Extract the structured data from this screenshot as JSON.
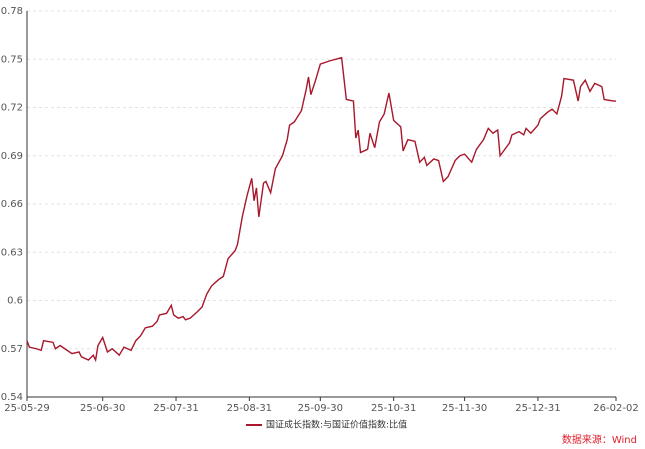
{
  "chart_data": {
    "type": "line",
    "legend_label": "国证成长指数:与国证价值指数:比值",
    "source": "数据来源：Wind",
    "x": [
      "25-05-29",
      "25-05-30",
      "25-06-02",
      "25-06-04",
      "25-06-05",
      "25-06-09",
      "25-06-10",
      "25-06-12",
      "25-06-15",
      "25-06-17",
      "25-06-20",
      "25-06-21",
      "25-06-24",
      "25-06-26",
      "25-06-27",
      "25-06-28",
      "25-06-30",
      "25-07-02",
      "25-07-04",
      "25-07-07",
      "25-07-09",
      "25-07-12",
      "25-07-14",
      "25-07-16",
      "25-07-18",
      "25-07-21",
      "25-07-23",
      "25-07-24",
      "25-07-27",
      "25-07-29",
      "25-07-30",
      "25-08-01",
      "25-08-03",
      "25-08-04",
      "25-08-06",
      "25-08-09",
      "25-08-11",
      "25-08-13",
      "25-08-15",
      "25-08-18",
      "25-08-20",
      "25-08-22",
      "25-08-25",
      "25-08-26",
      "25-08-28",
      "25-08-30",
      "25-09-01",
      "25-09-02",
      "25-09-03",
      "25-09-04",
      "25-09-06",
      "25-09-07",
      "25-09-09",
      "25-09-11",
      "25-09-14",
      "25-09-16",
      "25-09-17",
      "25-09-19",
      "25-09-22",
      "25-09-24",
      "25-09-25",
      "25-09-26",
      "25-09-28",
      "25-09-30",
      "25-10-04",
      "25-10-09",
      "25-10-11",
      "25-10-14",
      "25-10-15",
      "25-10-16",
      "25-10-17",
      "25-10-20",
      "25-10-21",
      "25-10-23",
      "25-10-25",
      "25-10-27",
      "25-10-29",
      "25-10-31",
      "25-11-03",
      "25-11-04",
      "25-11-06",
      "25-11-09",
      "25-11-11",
      "25-11-13",
      "25-11-14",
      "25-11-17",
      "25-11-19",
      "25-11-21",
      "25-11-23",
      "25-11-26",
      "25-11-28",
      "25-11-30",
      "25-12-03",
      "25-12-05",
      "25-12-08",
      "25-12-10",
      "25-12-12",
      "25-12-14",
      "25-12-15",
      "25-12-19",
      "25-12-20",
      "25-12-23",
      "25-12-25",
      "25-12-26",
      "25-12-28",
      "25-12-31",
      "26-01-01",
      "26-01-04",
      "26-01-06",
      "26-01-08",
      "26-01-10",
      "26-01-11",
      "26-01-15",
      "26-01-17",
      "26-01-18",
      "26-01-20",
      "26-01-22",
      "26-01-24",
      "26-01-27",
      "26-01-28",
      "26-02-01",
      "26-02-02"
    ],
    "series": [
      {
        "name": "国证成长指数:与国证价值指数:比值",
        "color": "#a8172a",
        "values": [
          0.575,
          0.571,
          0.57,
          0.569,
          0.575,
          0.574,
          0.57,
          0.572,
          0.569,
          0.567,
          0.568,
          0.565,
          0.563,
          0.566,
          0.563,
          0.572,
          0.577,
          0.568,
          0.57,
          0.566,
          0.571,
          0.569,
          0.575,
          0.578,
          0.583,
          0.584,
          0.587,
          0.591,
          0.592,
          0.597,
          0.591,
          0.589,
          0.59,
          0.588,
          0.589,
          0.593,
          0.596,
          0.604,
          0.609,
          0.613,
          0.615,
          0.626,
          0.631,
          0.635,
          0.652,
          0.665,
          0.676,
          0.662,
          0.67,
          0.652,
          0.673,
          0.674,
          0.667,
          0.682,
          0.69,
          0.7,
          0.709,
          0.711,
          0.718,
          0.731,
          0.739,
          0.728,
          0.737,
          0.747,
          0.749,
          0.751,
          0.725,
          0.724,
          0.701,
          0.706,
          0.692,
          0.694,
          0.704,
          0.695,
          0.711,
          0.716,
          0.729,
          0.712,
          0.708,
          0.693,
          0.7,
          0.699,
          0.686,
          0.689,
          0.684,
          0.688,
          0.687,
          0.674,
          0.677,
          0.687,
          0.69,
          0.691,
          0.686,
          0.694,
          0.7,
          0.707,
          0.704,
          0.706,
          0.69,
          0.698,
          0.703,
          0.705,
          0.703,
          0.707,
          0.704,
          0.709,
          0.713,
          0.717,
          0.719,
          0.716,
          0.727,
          0.738,
          0.737,
          0.724,
          0.733,
          0.737,
          0.73,
          0.735,
          0.733,
          0.725,
          0.724,
          0.724
        ]
      }
    ],
    "xlim": [
      "25-05-29",
      "26-02-02"
    ],
    "xticks": [
      "25-05-29",
      "25-06-30",
      "25-07-31",
      "25-08-31",
      "25-09-30",
      "25-10-31",
      "25-11-30",
      "25-12-31",
      "26-02-02"
    ],
    "ylim": [
      0.54,
      0.78
    ],
    "yticks": [
      0.54,
      0.57,
      0.6,
      0.63,
      0.66,
      0.69,
      0.72,
      0.75,
      0.78
    ],
    "grid": true
  }
}
